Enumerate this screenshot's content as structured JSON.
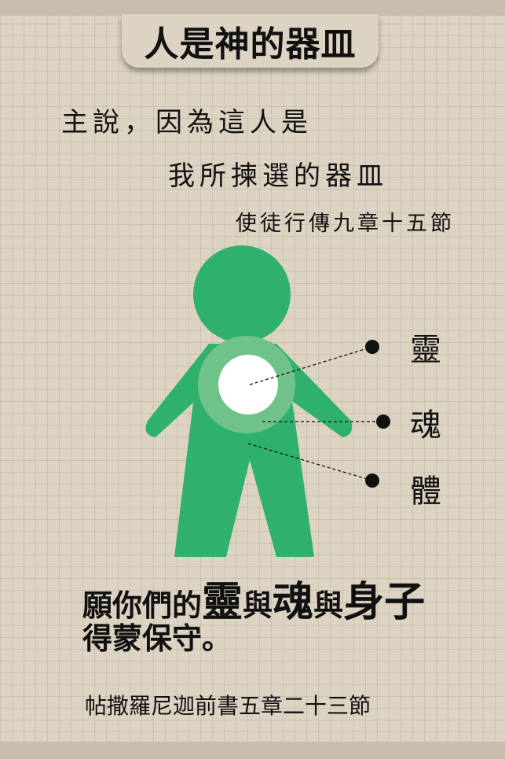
{
  "title": "人是神的器皿",
  "verse": {
    "line1": "主說，因為這人是",
    "line2": "我所揀選的器皿",
    "reference": "使徒行傳九章十五節"
  },
  "diagram": {
    "labels": {
      "spirit": "靈",
      "soul": "魂",
      "body": "體"
    },
    "colors": {
      "figure": "#2fb16d",
      "soul_ring": "#6fc28a",
      "spirit_core": "#ffffff"
    }
  },
  "blessing": {
    "part1": "願你們的",
    "spirit": "靈",
    "and1": "與",
    "soul": "魂",
    "and2": "與",
    "body": "身子",
    "line2": "得蒙保守。",
    "reference": "帖撒羅尼迦前書五章二十三節"
  },
  "colors": {
    "background": "#ddd3c3",
    "band": "#c8bdac",
    "text": "#111111"
  }
}
